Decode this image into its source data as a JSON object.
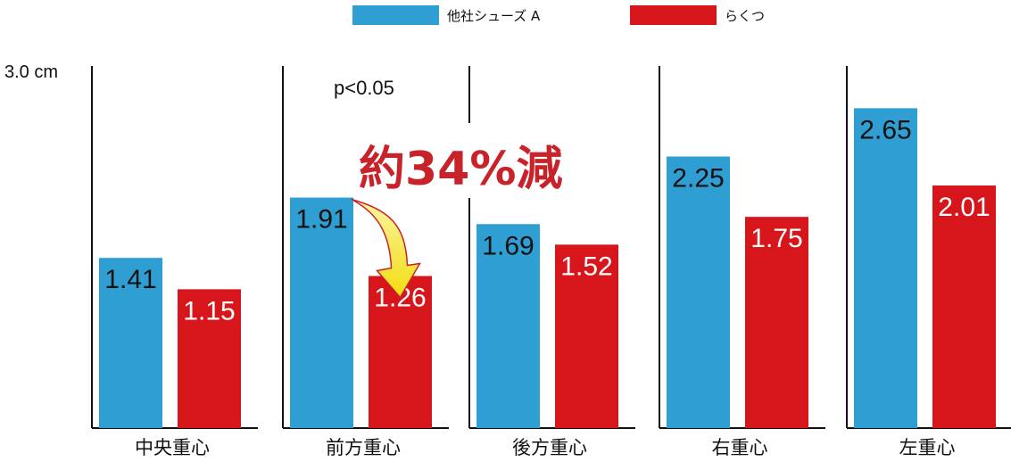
{
  "chart_data": {
    "type": "bar",
    "categories": [
      "中央重心",
      "前方重心",
      "後方重心",
      "右重心",
      "左重心"
    ],
    "series": [
      {
        "name": "他社シューズ A",
        "color": "#2f9fd3",
        "values": [
          1.41,
          1.91,
          1.69,
          2.25,
          2.65
        ]
      },
      {
        "name": "らくつ",
        "color": "#d7161c",
        "values": [
          1.15,
          1.26,
          1.52,
          1.75,
          2.01
        ]
      }
    ],
    "value_labels": [
      [
        "1.41",
        "1.91",
        "1.69",
        "2.25",
        "2.65"
      ],
      [
        "1.15",
        "1.26",
        "1.52",
        "1.75",
        "2.01"
      ]
    ],
    "y_axis_label": "3.0 cm",
    "ylim": [
      0,
      3.0
    ],
    "grid": false,
    "legend_position": "top-center",
    "annotations": {
      "p_value": "p<0.05",
      "reduction": "約34%減",
      "arrow_color": "#f2e21a",
      "arrow_from_series": 0,
      "arrow_to_series": 1,
      "arrow_category_index": 1
    }
  }
}
